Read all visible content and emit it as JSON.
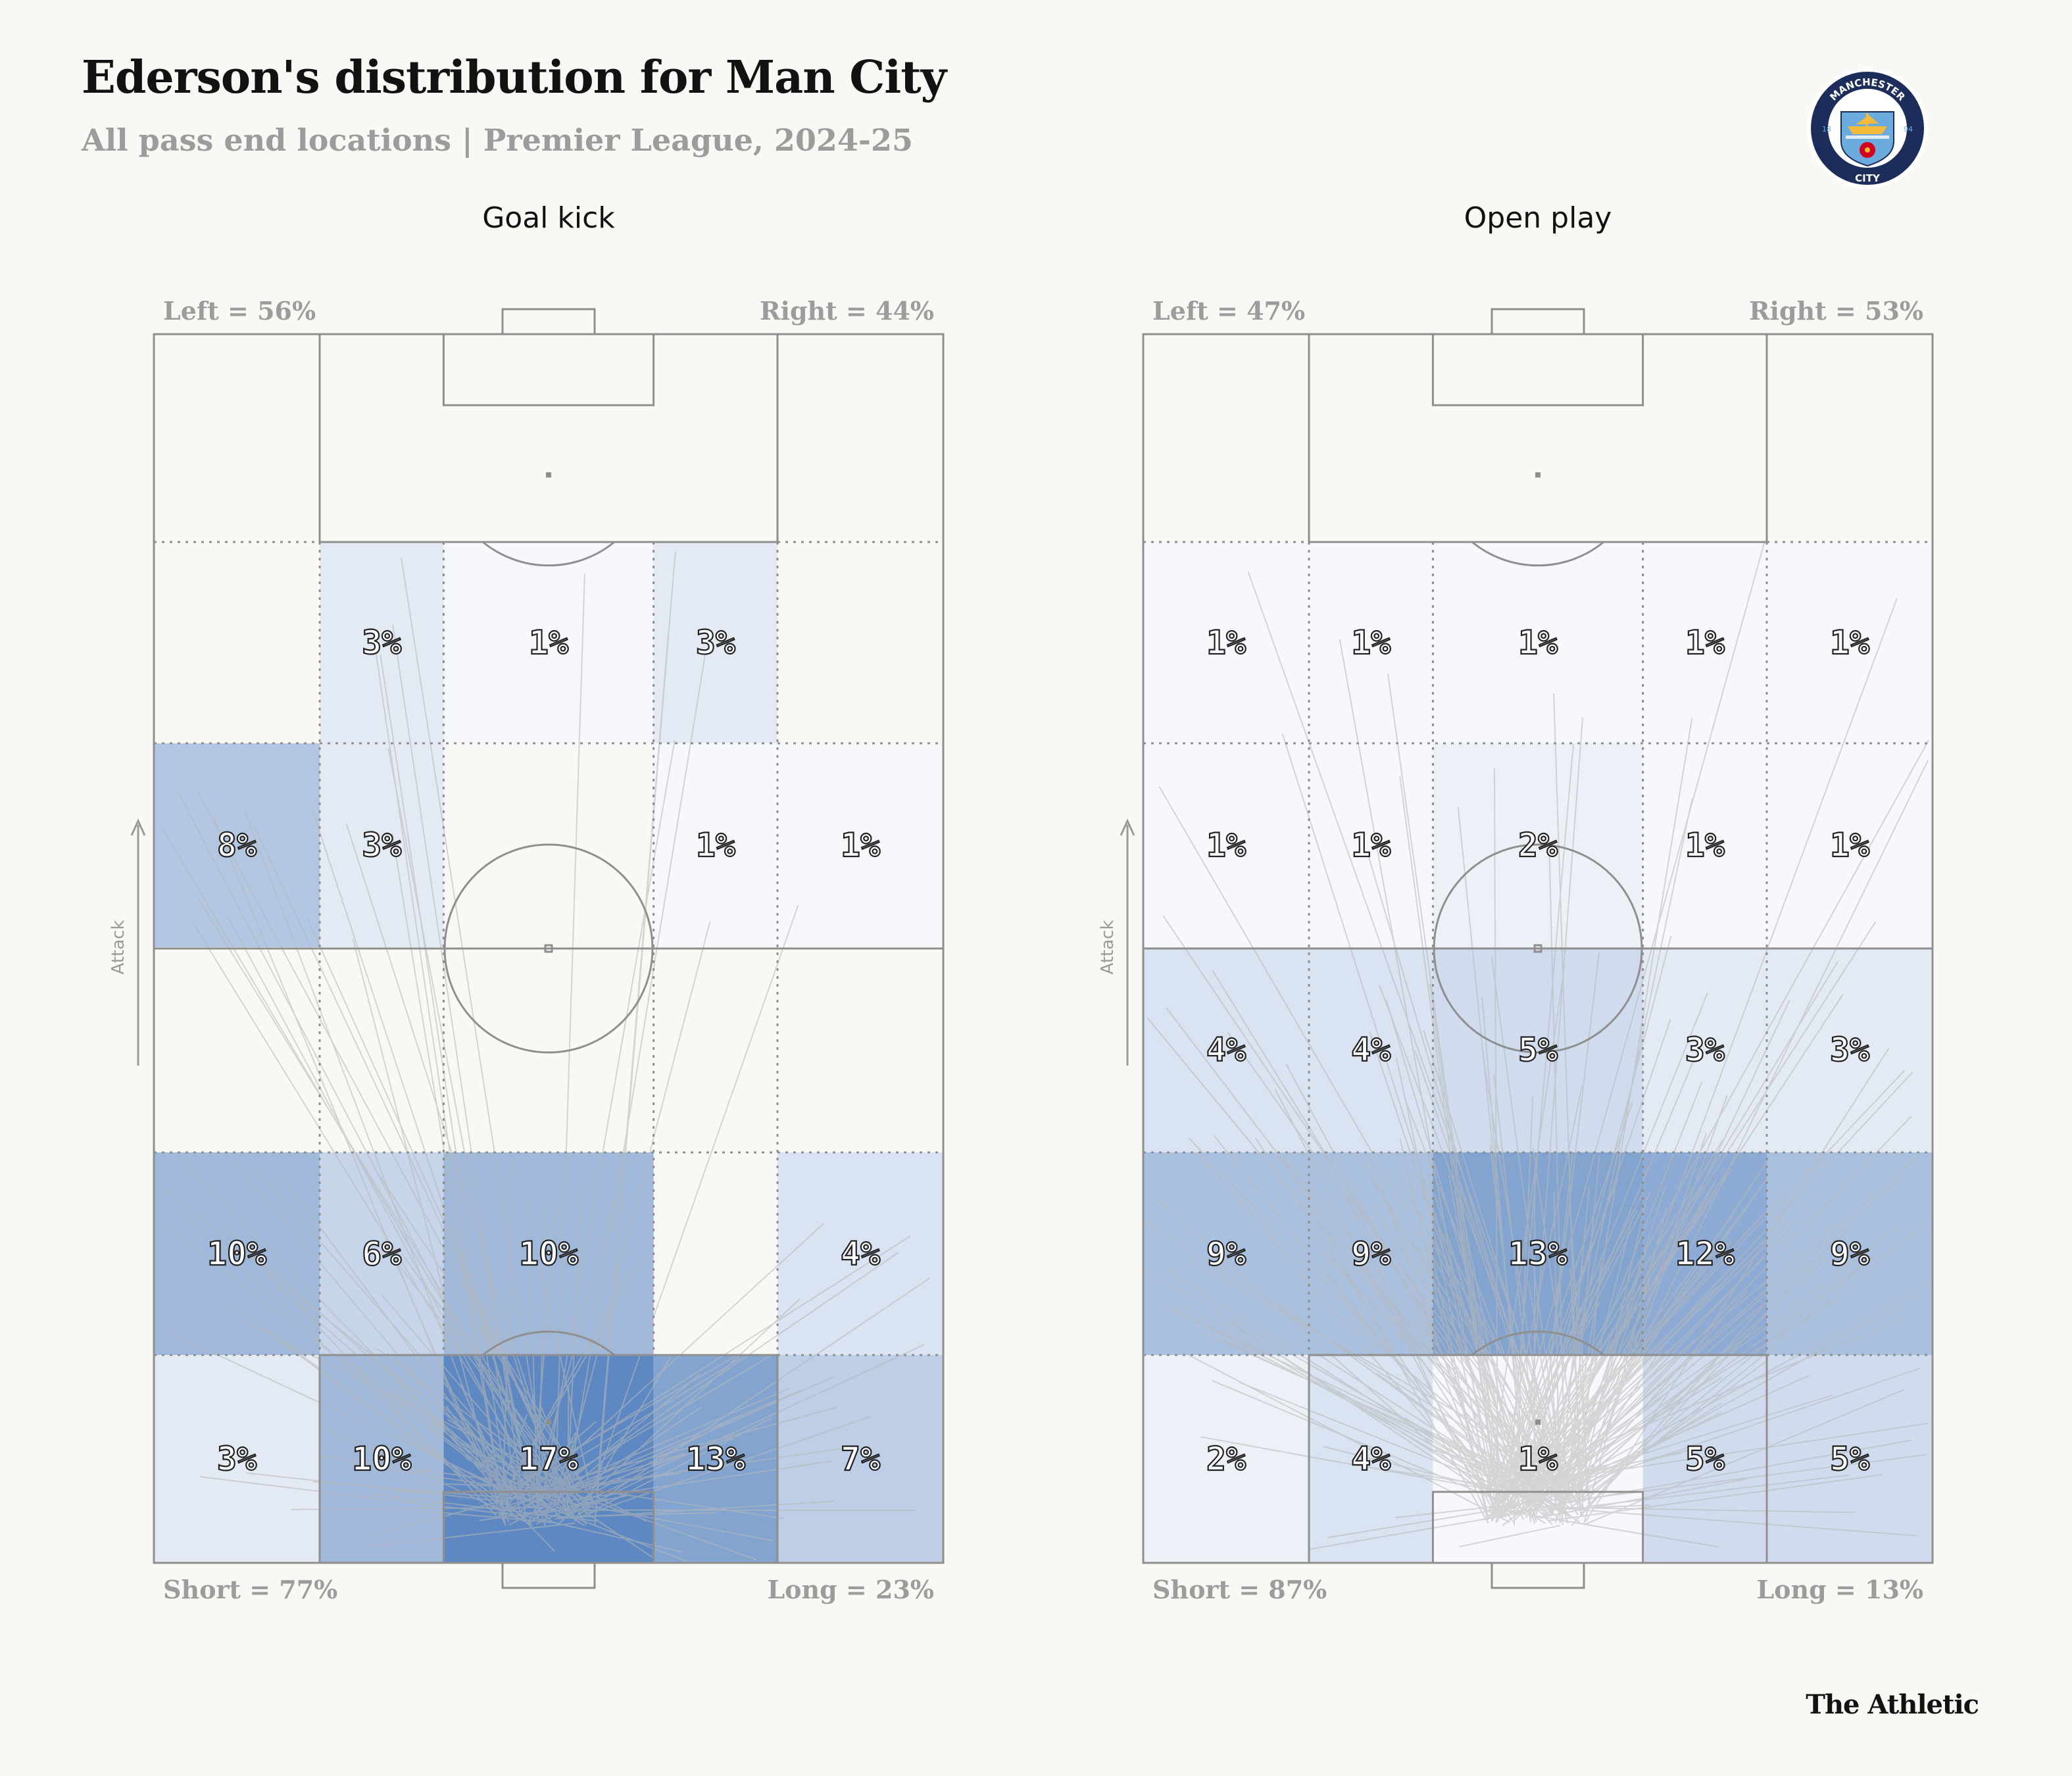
{
  "header": {
    "title": "Ederson's distribution for Man City",
    "subtitle": "All pass end locations | Premier League, 2024-25"
  },
  "footer": {
    "brand": "The Athletic"
  },
  "colors": {
    "background": "#f8f8f4",
    "cell_scale_low": "#ffffff",
    "cell_scale_high": "#5e88c2",
    "pitch_lines": "#8f8f8f",
    "arrows": "#b8b8b8",
    "muted_text": "#9c9c9c"
  },
  "crest": {
    "icon": "man-city-crest-icon",
    "ring_text": "MANCHESTER",
    "bottom_text": "CITY",
    "year_left": "18",
    "year_right": "94",
    "colors": {
      "ring": "#1c2c5b",
      "blue": "#6cabdd",
      "red": "#d4001f",
      "gold": "#f2b93b"
    }
  },
  "chart_data": [
    {
      "type": "heatmap",
      "title": "Goal kick",
      "grid": {
        "columns": 5,
        "rows": 5,
        "order": "top (attacking) row first, left to right"
      },
      "values": [
        [
          null,
          3,
          1,
          3,
          null
        ],
        [
          8,
          3,
          null,
          1,
          1
        ],
        [
          null,
          null,
          null,
          null,
          null
        ],
        [
          10,
          6,
          10,
          null,
          4
        ],
        [
          3,
          10,
          17,
          13,
          7
        ]
      ],
      "value_format": "{v}%",
      "annotations": {
        "left": "Left = 56%",
        "right": "Right = 44%",
        "short": "Short = 77%",
        "long": "Long = 23%"
      },
      "direction_label": "Attack"
    },
    {
      "type": "heatmap",
      "title": "Open play",
      "grid": {
        "columns": 5,
        "rows": 5,
        "order": "top (attacking) row first, left to right"
      },
      "values": [
        [
          1,
          1,
          1,
          1,
          1
        ],
        [
          1,
          1,
          2,
          1,
          1
        ],
        [
          4,
          4,
          5,
          3,
          3
        ],
        [
          9,
          9,
          13,
          12,
          9
        ],
        [
          2,
          4,
          1,
          5,
          5
        ]
      ],
      "value_format": "{v}%",
      "annotations": {
        "left": "Left = 47%",
        "right": "Right = 53%",
        "short": "Short = 87%",
        "long": "Long = 13%"
      },
      "direction_label": "Attack"
    }
  ]
}
